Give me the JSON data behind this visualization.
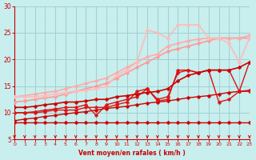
{
  "xlabel": "Vent moyen/en rafales ( km/h )",
  "xlim": [
    0,
    23
  ],
  "ylim": [
    5,
    30
  ],
  "yticks": [
    5,
    10,
    15,
    20,
    25,
    30
  ],
  "xticks": [
    0,
    1,
    2,
    3,
    4,
    5,
    6,
    7,
    8,
    9,
    10,
    11,
    12,
    13,
    14,
    15,
    16,
    17,
    18,
    19,
    20,
    21,
    22,
    23
  ],
  "bg_color": "#c8eeee",
  "grid_color": "#99cccc",
  "lines": [
    {
      "x": [
        0,
        1,
        2,
        3,
        4,
        5,
        6,
        7,
        8,
        9,
        10,
        11,
        12,
        13,
        14,
        15,
        16,
        17,
        18,
        19,
        20,
        21,
        22,
        23
      ],
      "y": [
        8.2,
        8.2,
        8.2,
        8.2,
        8.2,
        8.2,
        8.2,
        8.2,
        8.2,
        8.2,
        8.2,
        8.2,
        8.2,
        8.2,
        8.2,
        8.2,
        8.2,
        8.2,
        8.2,
        8.2,
        8.2,
        8.2,
        8.2,
        8.2
      ],
      "color": "#cc0000",
      "lw": 1.0,
      "marker": "D",
      "ms": 2.5
    },
    {
      "x": [
        0,
        1,
        2,
        3,
        4,
        5,
        6,
        7,
        8,
        9,
        10,
        11,
        12,
        13,
        14,
        15,
        16,
        17,
        18,
        19,
        20,
        21,
        22,
        23
      ],
      "y": [
        8.5,
        8.8,
        9.0,
        9.3,
        9.5,
        9.8,
        10.0,
        10.2,
        10.5,
        10.8,
        11.0,
        11.2,
        11.5,
        11.8,
        12.0,
        12.2,
        12.5,
        12.8,
        13.0,
        13.2,
        13.5,
        13.8,
        14.0,
        14.2
      ],
      "color": "#cc0000",
      "lw": 1.0,
      "marker": "D",
      "ms": 2.5
    },
    {
      "x": [
        0,
        1,
        2,
        3,
        4,
        5,
        6,
        7,
        8,
        9,
        10,
        11,
        12,
        13,
        14,
        15,
        16,
        17,
        18,
        19,
        20,
        21,
        22,
        23
      ],
      "y": [
        10.0,
        10.0,
        10.0,
        10.2,
        10.5,
        10.5,
        10.5,
        11.0,
        11.0,
        11.0,
        11.5,
        12.0,
        14.0,
        14.5,
        12.2,
        12.5,
        18.0,
        18.0,
        17.5,
        18.0,
        18.0,
        18.0,
        14.0,
        19.5
      ],
      "color": "#dd1111",
      "lw": 1.0,
      "marker": "P",
      "ms": 3.0
    },
    {
      "x": [
        0,
        1,
        2,
        3,
        4,
        5,
        6,
        7,
        8,
        9,
        10,
        11,
        12,
        13,
        14,
        15,
        16,
        17,
        18,
        19,
        20,
        21,
        22,
        23
      ],
      "y": [
        10.0,
        10.0,
        10.2,
        10.5,
        10.7,
        11.0,
        11.0,
        11.5,
        9.5,
        11.5,
        12.0,
        12.5,
        13.0,
        14.5,
        12.5,
        13.0,
        17.5,
        18.0,
        17.5,
        18.0,
        12.0,
        12.5,
        14.0,
        14.0
      ],
      "color": "#dd1111",
      "lw": 1.0,
      "marker": "P",
      "ms": 3.0
    },
    {
      "x": [
        0,
        1,
        2,
        3,
        4,
        5,
        6,
        7,
        8,
        9,
        10,
        11,
        12,
        13,
        14,
        15,
        16,
        17,
        18,
        19,
        20,
        21,
        22,
        23
      ],
      "y": [
        11.0,
        11.0,
        11.2,
        11.5,
        11.7,
        12.0,
        12.0,
        12.2,
        12.5,
        12.5,
        13.0,
        13.2,
        13.5,
        13.8,
        14.0,
        14.5,
        16.0,
        17.0,
        17.5,
        18.0,
        18.0,
        18.0,
        18.5,
        19.5
      ],
      "color": "#cc0000",
      "lw": 1.2,
      "marker": "D",
      "ms": 2.5
    },
    {
      "x": [
        0,
        1,
        2,
        3,
        4,
        5,
        6,
        7,
        8,
        9,
        10,
        11,
        12,
        13,
        14,
        15,
        16,
        17,
        18,
        19,
        20,
        21,
        22,
        23
      ],
      "y": [
        12.0,
        12.2,
        12.5,
        12.8,
        13.0,
        13.5,
        14.0,
        14.5,
        15.0,
        15.5,
        16.5,
        17.5,
        18.5,
        19.5,
        20.5,
        21.5,
        22.0,
        22.5,
        23.0,
        23.5,
        24.0,
        24.0,
        24.0,
        24.0
      ],
      "color": "#ff9999",
      "lw": 1.2,
      "marker": "D",
      "ms": 2.5
    },
    {
      "x": [
        0,
        1,
        2,
        3,
        4,
        5,
        6,
        7,
        8,
        9,
        10,
        11,
        12,
        13,
        14,
        15,
        16,
        17,
        18,
        19,
        20,
        21,
        22,
        23
      ],
      "y": [
        13.0,
        13.2,
        13.5,
        13.8,
        14.0,
        14.5,
        15.0,
        15.5,
        16.0,
        16.5,
        17.5,
        18.5,
        19.5,
        20.5,
        21.0,
        22.5,
        23.0,
        23.5,
        23.8,
        24.0,
        24.0,
        24.0,
        24.0,
        24.5
      ],
      "color": "#ffaaaa",
      "lw": 1.2,
      "marker": "D",
      "ms": 2.5
    },
    {
      "x": [
        0,
        1,
        2,
        3,
        4,
        5,
        6,
        7,
        8,
        9,
        10,
        11,
        12,
        13,
        14,
        15,
        16,
        17,
        18,
        19,
        20,
        21,
        22,
        23
      ],
      "y": [
        13.0,
        13.0,
        13.0,
        13.2,
        13.5,
        13.8,
        14.0,
        14.2,
        14.5,
        15.0,
        17.0,
        18.0,
        19.5,
        25.5,
        25.0,
        24.0,
        26.5,
        26.5,
        26.5,
        24.0,
        24.0,
        23.0,
        19.5,
        24.0
      ],
      "color": "#ffbbbb",
      "lw": 1.2,
      "marker": "D",
      "ms": 2.5
    }
  ]
}
